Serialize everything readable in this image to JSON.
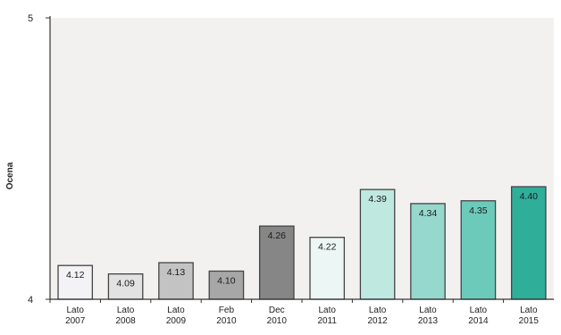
{
  "chart_data": {
    "type": "bar",
    "title": "",
    "xlabel": "",
    "ylabel": "Ocena",
    "ylim": [
      4,
      5
    ],
    "yticks": [
      4,
      5
    ],
    "grid": false,
    "legend": "none",
    "categories": [
      [
        "Lato",
        "2007"
      ],
      [
        "Lato",
        "2008"
      ],
      [
        "Lato",
        "2009"
      ],
      [
        "Feb",
        "2010"
      ],
      [
        "Dec",
        "2010"
      ],
      [
        "Lato",
        "2011"
      ],
      [
        "Lato",
        "2012"
      ],
      [
        "Lato",
        "2013"
      ],
      [
        "Lato",
        "2014"
      ],
      [
        "Lato",
        "2015"
      ]
    ],
    "values": [
      4.12,
      4.09,
      4.13,
      4.1,
      4.26,
      4.22,
      4.39,
      4.34,
      4.35,
      4.4
    ],
    "value_labels": [
      "4.12",
      "4.09",
      "4.13",
      "4.10",
      "4.26",
      "4.22",
      "4.39",
      "4.34",
      "4.35",
      "4.40"
    ],
    "colors": [
      "#f3f3f6",
      "#e2e2e2",
      "#c3c3c3",
      "#a7a7a7",
      "#868686",
      "#ecf7f5",
      "#bfe8e0",
      "#96d8cd",
      "#6ccabb",
      "#2fae9a"
    ],
    "plot_background": "#f2f1ef",
    "bar_edge_color": "#444444"
  }
}
